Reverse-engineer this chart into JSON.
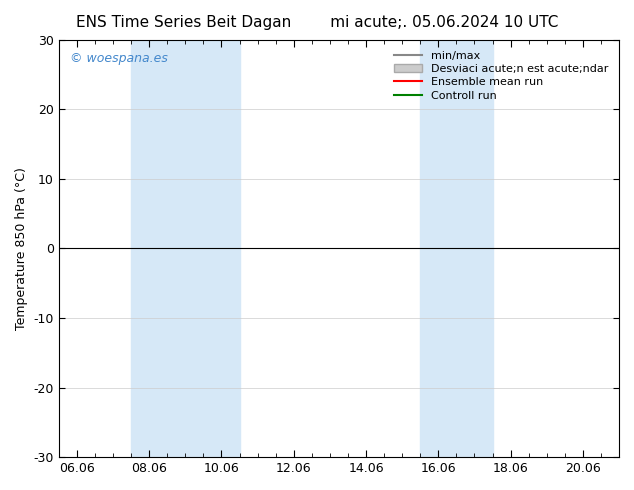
{
  "title_left": "ENS Time Series Beit Dagan",
  "title_right": "mi·acute;. 05.06.2024 10 UTC",
  "title_full": "ENS Time Series Beit Dagan        mi acute;. 05.06.2024 10 UTC",
  "ylabel": "Temperature 850 hPa (°C)",
  "xlabel": "",
  "ylim": [
    -30,
    30
  ],
  "yticks": [
    -30,
    -20,
    -10,
    0,
    10,
    20,
    30
  ],
  "xtick_labels": [
    "06.06",
    "08.06",
    "10.06",
    "12.06",
    "14.06",
    "16.06",
    "18.06",
    "20.06"
  ],
  "xtick_positions": [
    0,
    2,
    4,
    6,
    8,
    10,
    12,
    14
  ],
  "xmin": -0.5,
  "xmax": 15.0,
  "shaded_bands": [
    {
      "xmin": 1.5,
      "xmax": 4.5
    },
    {
      "xmin": 9.5,
      "xmax": 11.5
    }
  ],
  "shade_color": "#d6e8f7",
  "background_color": "#ffffff",
  "watermark_text": "© woespana.es",
  "watermark_color": "#4488cc",
  "legend_items": [
    {
      "label": "min/max",
      "color": "#aaaaaa",
      "lw": 2,
      "ls": "-"
    },
    {
      "label": "Desviaci³ acute;n est· acute;ndar",
      "color": "#cccccc",
      "lw": 6,
      "ls": "-"
    },
    {
      "label": "Ensemble mean run",
      "color": "red",
      "lw": 1.5,
      "ls": "-"
    },
    {
      "label": "Controll run",
      "color": "green",
      "lw": 1.5,
      "ls": "-"
    }
  ],
  "zero_line_color": "#000000",
  "grid_color": "#cccccc",
  "tick_font_size": 9,
  "label_font_size": 9,
  "title_font_size": 11
}
